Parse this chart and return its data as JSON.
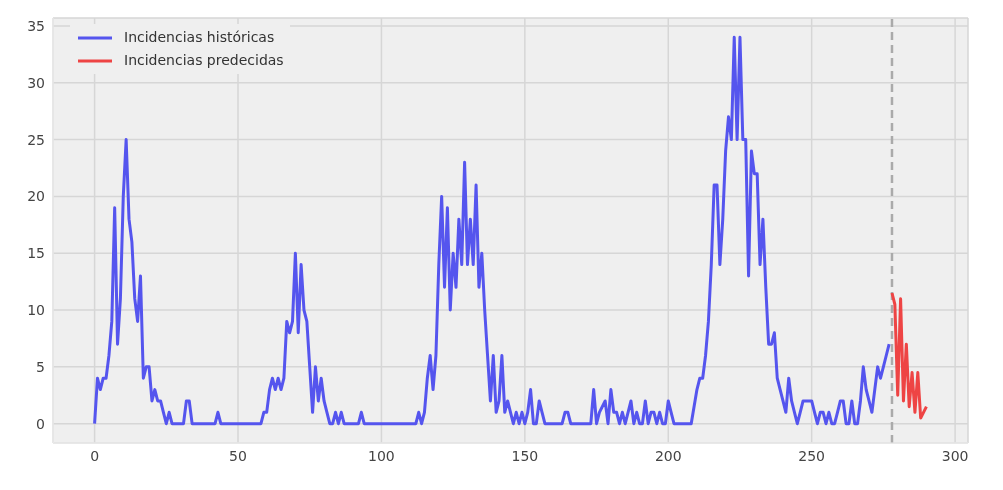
{
  "chart_data": {
    "type": "line",
    "xlim": [
      -14.5,
      304.5
    ],
    "ylim": [
      -1.7,
      35.7
    ],
    "xticks": [
      0,
      50,
      100,
      150,
      200,
      250,
      300
    ],
    "yticks": [
      0,
      5,
      10,
      15,
      20,
      25,
      30,
      35
    ],
    "grid": true,
    "legend": "top left",
    "series": [
      {
        "name": "Incidencias históricas",
        "color": "#5555ee",
        "x": [
          0,
          1,
          2,
          3,
          4,
          5,
          6,
          7,
          8,
          9,
          10,
          11,
          12,
          13,
          14,
          15,
          16,
          17,
          18,
          19,
          20,
          21,
          22,
          23,
          24,
          25,
          26,
          27,
          31,
          32,
          33,
          34,
          42,
          43,
          44,
          58,
          59,
          60,
          61,
          62,
          63,
          64,
          65,
          66,
          67,
          68,
          69,
          70,
          71,
          72,
          73,
          74,
          75,
          76,
          77,
          78,
          79,
          80,
          81,
          82,
          83,
          84,
          85,
          86,
          87,
          92,
          93,
          94,
          112,
          113,
          114,
          115,
          116,
          117,
          118,
          119,
          120,
          121,
          122,
          123,
          124,
          125,
          126,
          127,
          128,
          129,
          130,
          131,
          132,
          133,
          134,
          135,
          136,
          137,
          138,
          139,
          140,
          141,
          142,
          143,
          144,
          145,
          146,
          147,
          148,
          149,
          150,
          151,
          152,
          153,
          154,
          155,
          156,
          157,
          158,
          163,
          164,
          165,
          166,
          173,
          174,
          175,
          176,
          178,
          179,
          180,
          181,
          182,
          183,
          184,
          185,
          187,
          188,
          189,
          190,
          191,
          192,
          193,
          194,
          195,
          196,
          197,
          198,
          199,
          200,
          201,
          202,
          203,
          204,
          208,
          210,
          211,
          212,
          213,
          214,
          215,
          216,
          217,
          218,
          219,
          220,
          221,
          222,
          223,
          224,
          225,
          226,
          227,
          228,
          229,
          230,
          231,
          232,
          233,
          234,
          235,
          236,
          237,
          238,
          239,
          240,
          241,
          242,
          243,
          244,
          245,
          246,
          247,
          248,
          249,
          250,
          251,
          252,
          253,
          254,
          255,
          256,
          257,
          258,
          259,
          260,
          261,
          262,
          263,
          264,
          265,
          266,
          267,
          268,
          269,
          270,
          271,
          272,
          273,
          274,
          275,
          276,
          277
        ],
        "values": [
          0,
          4,
          3,
          4,
          4,
          6,
          9,
          19,
          7,
          11,
          20,
          25,
          18,
          16,
          11,
          9,
          13,
          4,
          5,
          5,
          2,
          3,
          2,
          2,
          1,
          0,
          1,
          0,
          0,
          2,
          2,
          0,
          0,
          1,
          0,
          0,
          1,
          1,
          3,
          4,
          3,
          4,
          3,
          4,
          9,
          8,
          9,
          15,
          8,
          14,
          10,
          9,
          5,
          1,
          5,
          2,
          4,
          2,
          1,
          0,
          0,
          1,
          0,
          1,
          0,
          0,
          1,
          0,
          0,
          1,
          0,
          1,
          4,
          6,
          3,
          6,
          14,
          20,
          12,
          19,
          10,
          15,
          12,
          18,
          14,
          23,
          14,
          18,
          14,
          21,
          12,
          15,
          10,
          6,
          2,
          6,
          1,
          2,
          6,
          1,
          2,
          1,
          0,
          1,
          0,
          1,
          0,
          1,
          3,
          0,
          0,
          2,
          1,
          0,
          0,
          0,
          1,
          1,
          0,
          0,
          3,
          0,
          1,
          2,
          0,
          3,
          1,
          1,
          0,
          1,
          0,
          2,
          0,
          1,
          0,
          0,
          2,
          0,
          1,
          1,
          0,
          1,
          0,
          0,
          2,
          1,
          0,
          0,
          0,
          0,
          3,
          4,
          4,
          6,
          9,
          14,
          21,
          21,
          14,
          18,
          24,
          27,
          25,
          34,
          25,
          34,
          25,
          25,
          13,
          24,
          22,
          22,
          14,
          18,
          12,
          7,
          7,
          8,
          4,
          3,
          2,
          1,
          4,
          2,
          1,
          0,
          1,
          2,
          2,
          2,
          2,
          1,
          0,
          1,
          1,
          0,
          1,
          0,
          0,
          1,
          2,
          2,
          0,
          0,
          2,
          0,
          0,
          2,
          5,
          3,
          2,
          1,
          3,
          5,
          4,
          5,
          6,
          7
        ]
      },
      {
        "name": "Incidencias predecidas",
        "color": "#ee4444",
        "x": [
          278,
          279,
          280,
          281,
          282,
          283,
          284,
          285,
          286,
          287,
          288,
          289,
          290
        ],
        "values": [
          11.5,
          10.5,
          2.5,
          11,
          2,
          7,
          1.5,
          4.5,
          1,
          4.5,
          0.5,
          1,
          1.5
        ]
      }
    ],
    "ref_lines": [
      {
        "axis": "x",
        "value": 278,
        "color": "#aaaaaa",
        "line_style": "dashed"
      }
    ]
  }
}
